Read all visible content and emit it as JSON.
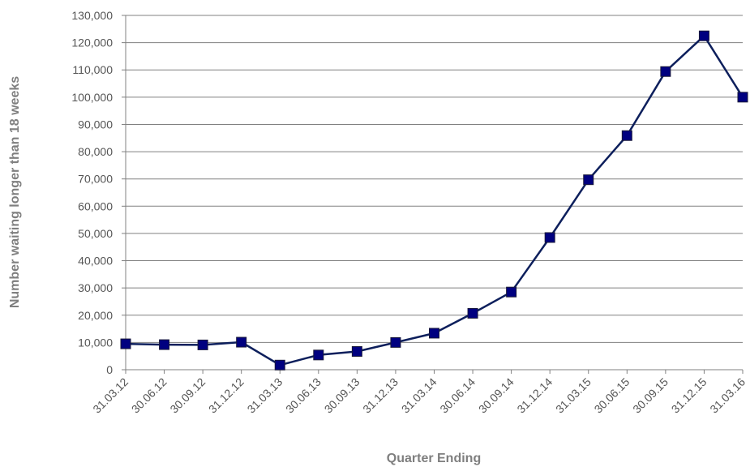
{
  "chart_data": {
    "type": "line",
    "title": "",
    "xlabel": "Quarter Ending",
    "ylabel": "Number waiting longer than 18 weeks",
    "categories": [
      "31.03.12",
      "30.06.12",
      "30.09.12",
      "31.12.12",
      "31.03.13",
      "30.06.13",
      "30.09.13",
      "31.12.13",
      "31.03.14",
      "30.06.14",
      "30.09.14",
      "31.12.14",
      "31.03.15",
      "30.06.15",
      "30.09.15",
      "31.12.15",
      "31.03.16"
    ],
    "series": [
      {
        "values": [
          9500,
          9200,
          9100,
          10100,
          1700,
          5400,
          6700,
          10000,
          13400,
          20700,
          28500,
          48500,
          69700,
          85900,
          109400,
          122500,
          100000
        ]
      }
    ],
    "ylim": [
      0,
      130000
    ],
    "yticks": [
      0,
      10000,
      20000,
      30000,
      40000,
      50000,
      60000,
      70000,
      80000,
      90000,
      100000,
      110000,
      120000,
      130000
    ],
    "ytick_labels": [
      "0",
      "10,000",
      "20,000",
      "30,000",
      "40,000",
      "50,000",
      "60,000",
      "70,000",
      "80,000",
      "90,000",
      "100,000",
      "110,000",
      "120,000",
      "130,000"
    ],
    "grid": true,
    "legend": "none",
    "line_color": "#0d1f5c",
    "marker_color": "#000080",
    "grid_color": "#808080"
  }
}
